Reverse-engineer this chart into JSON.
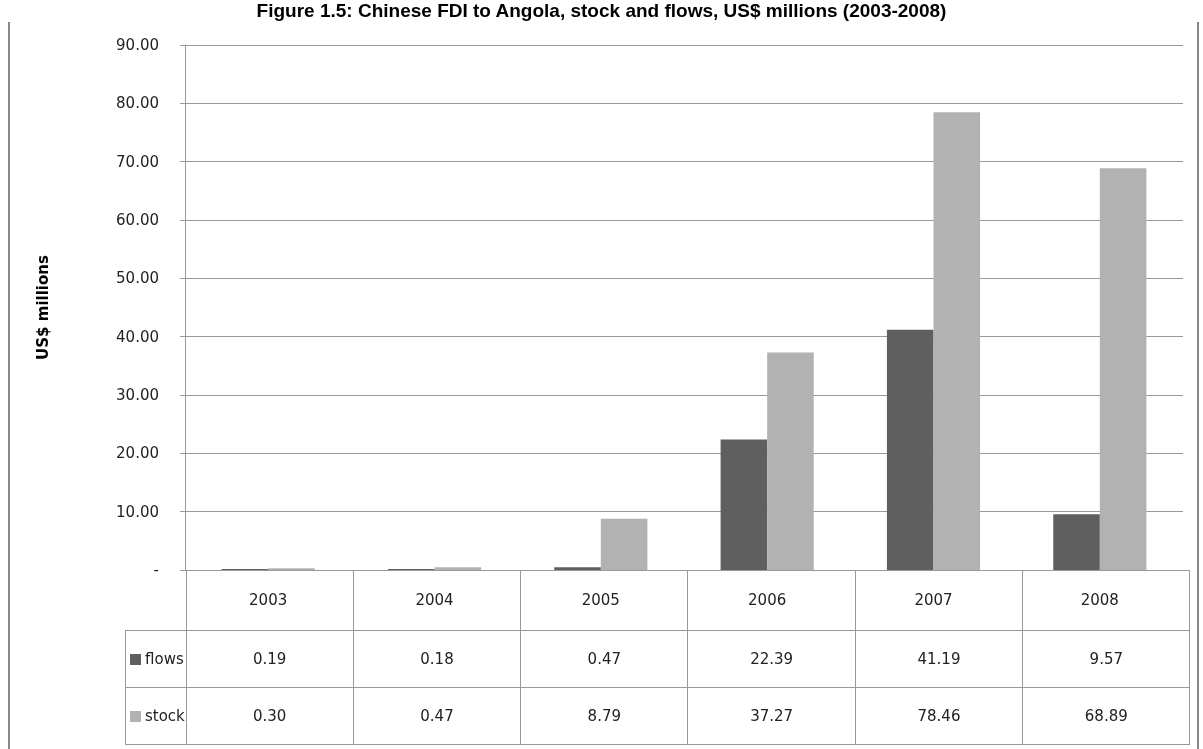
{
  "chart_data": {
    "type": "bar",
    "title": "Figure 1.5: Chinese FDI to Angola, stock and flows, US$ millions (2003-2008)",
    "ylabel": "US$ millions",
    "categories": [
      "2003",
      "2004",
      "2005",
      "2006",
      "2007",
      "2008"
    ],
    "series": [
      {
        "name": "flows",
        "color": "#5f5f5f",
        "values": [
          0.19,
          0.18,
          0.47,
          22.39,
          41.19,
          9.57
        ],
        "value_labels": [
          "0.19",
          "0.18",
          "0.47",
          "22.39",
          "41.19",
          "9.57"
        ]
      },
      {
        "name": "stock",
        "color": "#b2b2b2",
        "values": [
          0.3,
          0.47,
          8.79,
          37.27,
          78.46,
          68.89
        ],
        "value_labels": [
          "0.30",
          "0.47",
          "8.79",
          "37.27",
          "78.46",
          "68.89"
        ]
      }
    ],
    "ylim": [
      0,
      90
    ],
    "yticks": [
      {
        "value": 0,
        "label": "-"
      },
      {
        "value": 10,
        "label": "10.00"
      },
      {
        "value": 20,
        "label": "20.00"
      },
      {
        "value": 30,
        "label": "30.00"
      },
      {
        "value": 40,
        "label": "40.00"
      },
      {
        "value": 50,
        "label": "50.00"
      },
      {
        "value": 60,
        "label": "60.00"
      },
      {
        "value": 70,
        "label": "70.00"
      },
      {
        "value": 80,
        "label": "80.00"
      },
      {
        "value": 90,
        "label": "90.00"
      }
    ],
    "grid": "y",
    "legend": "bottom left"
  }
}
